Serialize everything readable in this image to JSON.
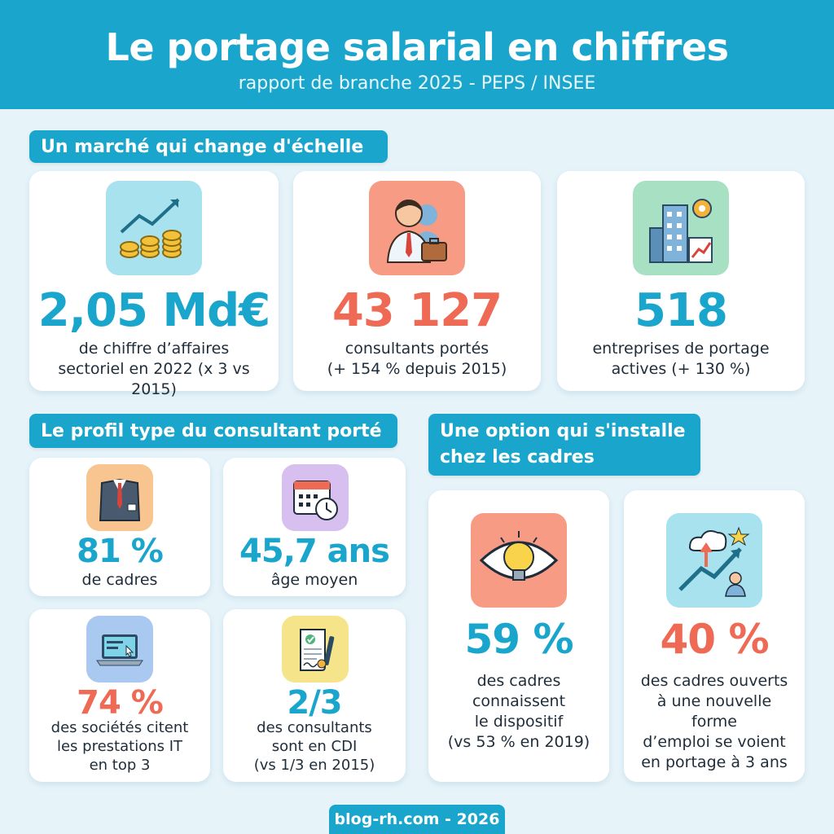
{
  "header": {
    "title": "Le portage salarial en chiffres",
    "subtitle": "rapport de branche 2025 - PEPS / INSEE"
  },
  "sections": {
    "market": "Un marché qui change d'échelle",
    "profile": "Le profil type du consultant porté",
    "option": "Une option qui s'installe\nchez les cadres"
  },
  "market_cards": [
    {
      "value": "2,05 Md€",
      "desc": "de chiffre d’affaires\nsectoriel en 2022 (x 3 vs 2015)",
      "icon": "euro-growth-icon",
      "color": "#1aa6cc"
    },
    {
      "value": "43 127",
      "desc": "consultants portés\n(+ 154 % depuis 2015)",
      "icon": "consultants-icon",
      "color": "#ef6a55"
    },
    {
      "value": "518",
      "desc": "entreprises de portage\nactives (+ 130 %)",
      "icon": "buildings-icon",
      "color": "#1aa6cc"
    }
  ],
  "profile_cards": [
    {
      "value": "81 %",
      "desc": "de cadres",
      "icon": "suit-icon"
    },
    {
      "value": "45,7 ans",
      "desc": "âge moyen",
      "icon": "calendar-clock-icon"
    },
    {
      "value": "74 %",
      "desc": "des sociétés citent\nles prestations IT\nen top 3",
      "icon": "laptop-icon"
    },
    {
      "value": "2/3",
      "desc": "des consultants\nsont en CDI\n(vs 1/3 en 2015)",
      "icon": "contract-icon"
    }
  ],
  "option_cards": [
    {
      "value": "59 %",
      "desc": "des cadres\nconnaissent\nle dispositif\n(vs 53 % en 2019)",
      "icon": "bulb-eye-icon"
    },
    {
      "value": "40 %",
      "desc": "des cadres ouverts\nà une nouvelle forme\nd’emploi se voient\nen portage à 3 ans",
      "icon": "growth-person-icon"
    }
  ],
  "footer": "blog-rh.com - 2026",
  "colors": {
    "accent": "#1aa6cc",
    "coral": "#ef6a55",
    "background": "#e6f4fa"
  }
}
